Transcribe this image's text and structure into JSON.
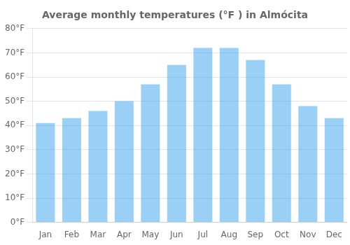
{
  "chart_data": {
    "type": "bar",
    "title": "Average monthly temperatures (°F ) in Almócita",
    "categories": [
      "Jan",
      "Feb",
      "Mar",
      "Apr",
      "May",
      "Jun",
      "Jul",
      "Aug",
      "Sep",
      "Oct",
      "Nov",
      "Dec"
    ],
    "values": [
      41,
      43,
      46,
      50,
      57,
      65,
      72,
      72,
      67,
      57,
      48,
      43
    ],
    "ylim": [
      0,
      80
    ],
    "yticks": [
      {
        "value": 0,
        "label": "0°F"
      },
      {
        "value": 10,
        "label": "10°F"
      },
      {
        "value": 20,
        "label": "20°F"
      },
      {
        "value": 30,
        "label": "30°F"
      },
      {
        "value": 40,
        "label": "40°F"
      },
      {
        "value": 50,
        "label": "50°F"
      },
      {
        "value": 60,
        "label": "60°F"
      },
      {
        "value": 70,
        "label": "70°F"
      },
      {
        "value": 80,
        "label": "80°F"
      }
    ],
    "grid": "y"
  }
}
